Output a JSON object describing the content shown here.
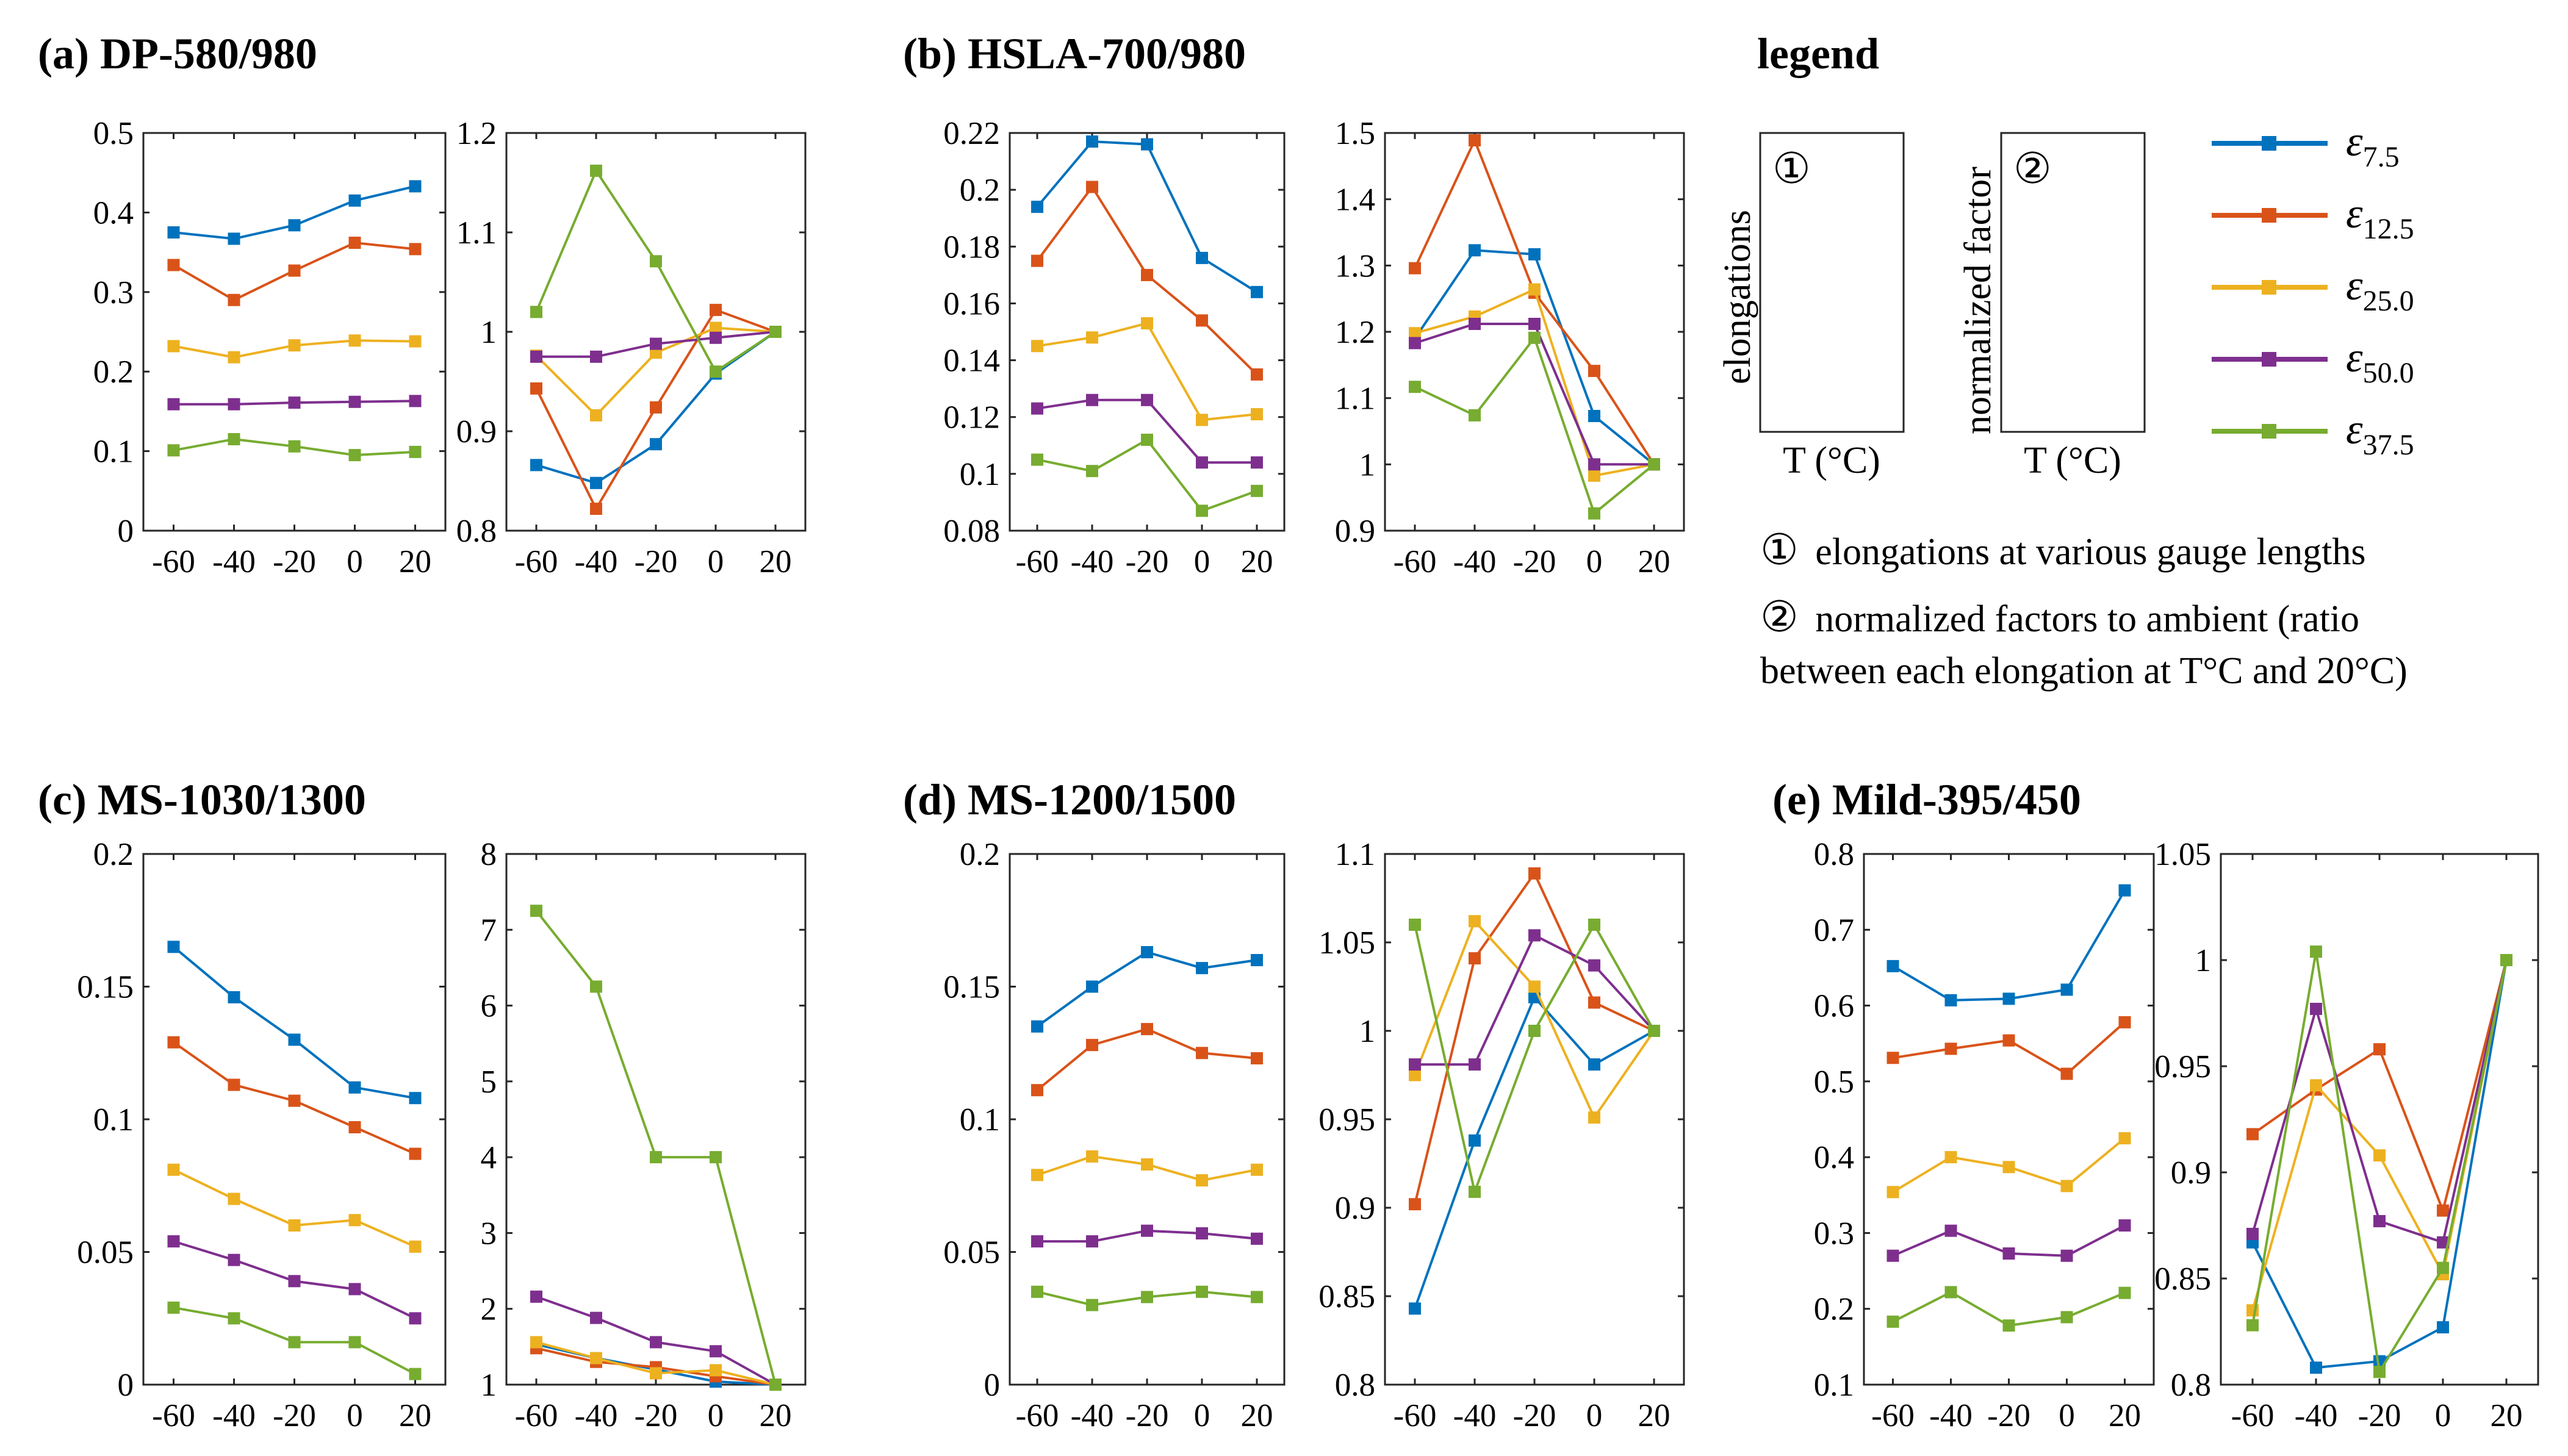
{
  "colors": {
    "blue": "#0072BD",
    "red": "#D95319",
    "yellow": "#EDB120",
    "purple": "#7E2F8E",
    "green": "#77AC30"
  },
  "chart_data": [
    {
      "id": "a",
      "title": "(a) DP-580/980",
      "subplots": [
        {
          "type": "line",
          "x": [
            -60,
            -40,
            -20,
            0,
            20
          ],
          "xticks": [
            "-60",
            "-40",
            "-20",
            "0",
            "20"
          ],
          "ylim": [
            0,
            0.5
          ],
          "yticks": [
            "0",
            "0.1",
            "0.2",
            "0.3",
            "0.4",
            "0.5"
          ],
          "series": [
            {
              "name": "ε7.5",
              "values": [
                0.375,
                0.367,
                0.384,
                0.415,
                0.433
              ]
            },
            {
              "name": "ε12.5",
              "values": [
                0.334,
                0.29,
                0.327,
                0.362,
                0.354
              ]
            },
            {
              "name": "ε25.0",
              "values": [
                0.232,
                0.218,
                0.233,
                0.239,
                0.238
              ]
            },
            {
              "name": "ε50.0",
              "values": [
                0.159,
                0.159,
                0.161,
                0.162,
                0.163
              ]
            },
            {
              "name": "ε37.5",
              "values": [
                0.101,
                0.115,
                0.106,
                0.095,
                0.099
              ]
            }
          ]
        },
        {
          "type": "line",
          "x": [
            -60,
            -40,
            -20,
            0,
            20
          ],
          "xticks": [
            "-60",
            "-40",
            "-20",
            "0",
            "20"
          ],
          "ylim": [
            0.8,
            1.2
          ],
          "yticks": [
            "0.8",
            "0.9",
            "1",
            "1.1",
            "1.2"
          ],
          "series": [
            {
              "name": "ε7.5",
              "values": [
                0.866,
                0.848,
                0.887,
                0.958,
                1.0
              ]
            },
            {
              "name": "ε12.5",
              "values": [
                0.943,
                0.822,
                0.924,
                1.022,
                1.0
              ]
            },
            {
              "name": "ε25.0",
              "values": [
                0.976,
                0.916,
                0.979,
                1.004,
                1.0
              ]
            },
            {
              "name": "ε50.0",
              "values": [
                0.975,
                0.975,
                0.988,
                0.994,
                1.0
              ]
            },
            {
              "name": "ε37.5",
              "values": [
                1.02,
                1.162,
                1.071,
                0.96,
                1.0
              ]
            }
          ]
        }
      ]
    },
    {
      "id": "b",
      "title": "(b) HSLA-700/980",
      "subplots": [
        {
          "type": "line",
          "x": [
            -60,
            -40,
            -20,
            0,
            20
          ],
          "xticks": [
            "-60",
            "-40",
            "-20",
            "0",
            "20"
          ],
          "ylim": [
            0.08,
            0.22
          ],
          "yticks": [
            "0.08",
            "0.1",
            "0.12",
            "0.14",
            "0.16",
            "0.18",
            "0.2",
            "0.22"
          ],
          "series": [
            {
              "name": "ε7.5",
              "values": [
                0.194,
                0.217,
                0.216,
                0.176,
                0.164
              ]
            },
            {
              "name": "ε12.5",
              "values": [
                0.175,
                0.201,
                0.17,
                0.154,
                0.135
              ]
            },
            {
              "name": "ε25.0",
              "values": [
                0.145,
                0.148,
                0.153,
                0.119,
                0.121
              ]
            },
            {
              "name": "ε50.0",
              "values": [
                0.123,
                0.126,
                0.126,
                0.104,
                0.104
              ]
            },
            {
              "name": "ε37.5",
              "values": [
                0.105,
                0.101,
                0.112,
                0.087,
                0.094
              ]
            }
          ]
        },
        {
          "type": "line",
          "x": [
            -60,
            -40,
            -20,
            0,
            20
          ],
          "xticks": [
            "-60",
            "-40",
            "-20",
            "0",
            "20"
          ],
          "ylim": [
            0.9,
            1.5
          ],
          "yticks": [
            "0.9",
            "1",
            "1.1",
            "1.2",
            "1.3",
            "1.4",
            "1.5"
          ],
          "series": [
            {
              "name": "ε7.5",
              "values": [
                1.19,
                1.323,
                1.317,
                1.073,
                1.0
              ]
            },
            {
              "name": "ε12.5",
              "values": [
                1.296,
                1.489,
                1.259,
                1.141,
                1.0
              ]
            },
            {
              "name": "ε25.0",
              "values": [
                1.198,
                1.223,
                1.264,
                0.983,
                1.0
              ]
            },
            {
              "name": "ε50.0",
              "values": [
                1.183,
                1.212,
                1.212,
                1.0,
                1.0
              ]
            },
            {
              "name": "ε37.5",
              "values": [
                1.117,
                1.074,
                1.191,
                0.926,
                1.0
              ]
            }
          ]
        }
      ]
    },
    {
      "id": "c",
      "title": "(c) MS-1030/1300",
      "subplots": [
        {
          "type": "line",
          "x": [
            -60,
            -40,
            -20,
            0,
            20
          ],
          "xticks": [
            "-60",
            "-40",
            "-20",
            "0",
            "20"
          ],
          "ylim": [
            0,
            0.2
          ],
          "yticks": [
            "0",
            "0.05",
            "0.1",
            "0.15",
            "0.2"
          ],
          "series": [
            {
              "name": "ε7.5",
              "values": [
                0.165,
                0.146,
                0.13,
                0.112,
                0.108
              ]
            },
            {
              "name": "ε12.5",
              "values": [
                0.129,
                0.113,
                0.107,
                0.097,
                0.087
              ]
            },
            {
              "name": "ε25.0",
              "values": [
                0.081,
                0.07,
                0.06,
                0.062,
                0.052
              ]
            },
            {
              "name": "ε50.0",
              "values": [
                0.054,
                0.047,
                0.039,
                0.036,
                0.025
              ]
            },
            {
              "name": "ε37.5",
              "values": [
                0.029,
                0.025,
                0.016,
                0.016,
                0.004
              ]
            }
          ]
        },
        {
          "type": "line",
          "x": [
            -60,
            -40,
            -20,
            0,
            20
          ],
          "xticks": [
            "-60",
            "-40",
            "-20",
            "0",
            "20"
          ],
          "ylim": [
            1,
            8
          ],
          "yticks": [
            "1",
            "2",
            "3",
            "4",
            "5",
            "6",
            "7",
            "8"
          ],
          "series": [
            {
              "name": "ε7.5",
              "values": [
                1.53,
                1.35,
                1.2,
                1.04,
                1.0
              ]
            },
            {
              "name": "ε12.5",
              "values": [
                1.48,
                1.3,
                1.23,
                1.11,
                1.0
              ]
            },
            {
              "name": "ε25.0",
              "values": [
                1.56,
                1.35,
                1.15,
                1.19,
                1.0
              ]
            },
            {
              "name": "ε50.0",
              "values": [
                2.16,
                1.88,
                1.56,
                1.44,
                1.0
              ]
            },
            {
              "name": "ε37.5",
              "values": [
                7.25,
                6.25,
                4.0,
                4.0,
                1.0
              ]
            }
          ]
        }
      ]
    },
    {
      "id": "d",
      "title": "(d) MS-1200/1500",
      "subplots": [
        {
          "type": "line",
          "x": [
            -60,
            -40,
            -20,
            0,
            20
          ],
          "xticks": [
            "-60",
            "-40",
            "-20",
            "0",
            "20"
          ],
          "ylim": [
            0,
            0.2
          ],
          "yticks": [
            "0",
            "0.05",
            "0.1",
            "0.15",
            "0.2"
          ],
          "series": [
            {
              "name": "ε7.5",
              "values": [
                0.135,
                0.15,
                0.163,
                0.157,
                0.16
              ]
            },
            {
              "name": "ε12.5",
              "values": [
                0.111,
                0.128,
                0.134,
                0.125,
                0.123
              ]
            },
            {
              "name": "ε25.0",
              "values": [
                0.079,
                0.086,
                0.083,
                0.077,
                0.081
              ]
            },
            {
              "name": "ε50.0",
              "values": [
                0.054,
                0.054,
                0.058,
                0.057,
                0.055
              ]
            },
            {
              "name": "ε37.5",
              "values": [
                0.035,
                0.03,
                0.033,
                0.035,
                0.033
              ]
            }
          ]
        },
        {
          "type": "line",
          "x": [
            -60,
            -40,
            -20,
            0,
            20
          ],
          "xticks": [
            "-60",
            "-40",
            "-20",
            "0",
            "20"
          ],
          "ylim": [
            0.8,
            1.1
          ],
          "yticks": [
            "0.8",
            "0.85",
            "0.9",
            "0.95",
            "1",
            "1.05",
            "1.1"
          ],
          "series": [
            {
              "name": "ε7.5",
              "values": [
                0.843,
                0.938,
                1.019,
                0.981,
                1.0
              ]
            },
            {
              "name": "ε12.5",
              "values": [
                0.902,
                1.041,
                1.089,
                1.016,
                1.0
              ]
            },
            {
              "name": "ε25.0",
              "values": [
                0.975,
                1.062,
                1.025,
                0.951,
                1.0
              ]
            },
            {
              "name": "ε50.0",
              "values": [
                0.981,
                0.981,
                1.054,
                1.037,
                1.0
              ]
            },
            {
              "name": "ε37.5",
              "values": [
                1.06,
                0.909,
                1.0,
                1.06,
                1.0
              ]
            }
          ]
        }
      ]
    },
    {
      "id": "e",
      "title": "(e) Mild-395/450",
      "subplots": [
        {
          "type": "line",
          "x": [
            -60,
            -40,
            -20,
            0,
            20
          ],
          "xticks": [
            "-60",
            "-40",
            "-20",
            "0",
            "20"
          ],
          "ylim": [
            0.1,
            0.8
          ],
          "yticks": [
            "0.1",
            "0.2",
            "0.3",
            "0.4",
            "0.5",
            "0.6",
            "0.7",
            "0.8"
          ],
          "series": [
            {
              "name": "ε7.5",
              "values": [
                0.652,
                0.607,
                0.609,
                0.621,
                0.752
              ]
            },
            {
              "name": "ε12.5",
              "values": [
                0.531,
                0.543,
                0.554,
                0.51,
                0.578
              ]
            },
            {
              "name": "ε25.0",
              "values": [
                0.354,
                0.4,
                0.387,
                0.362,
                0.425
              ]
            },
            {
              "name": "ε50.0",
              "values": [
                0.27,
                0.303,
                0.273,
                0.27,
                0.31
              ]
            },
            {
              "name": "ε37.5",
              "values": [
                0.183,
                0.222,
                0.178,
                0.189,
                0.221
              ]
            }
          ]
        },
        {
          "type": "line",
          "x": [
            -60,
            -40,
            -20,
            0,
            20
          ],
          "xticks": [
            "-60",
            "-40",
            "-20",
            "0",
            "20"
          ],
          "ylim": [
            0.8,
            1.05
          ],
          "yticks": [
            "0.8",
            "0.85",
            "0.9",
            "0.95",
            "1",
            "1.05"
          ],
          "series": [
            {
              "name": "ε7.5",
              "values": [
                0.867,
                0.808,
                0.811,
                0.827,
                1.0
              ]
            },
            {
              "name": "ε12.5",
              "values": [
                0.918,
                0.939,
                0.958,
                0.882,
                1.0
              ]
            },
            {
              "name": "ε25.0",
              "values": [
                0.835,
                0.941,
                0.908,
                0.852,
                1.0
              ]
            },
            {
              "name": "ε50.0",
              "values": [
                0.871,
                0.977,
                0.877,
                0.867,
                1.0
              ]
            },
            {
              "name": "ε37.5",
              "values": [
                0.828,
                1.004,
                0.806,
                0.855,
                1.0
              ]
            }
          ]
        }
      ]
    }
  ],
  "legend": {
    "title": "legend",
    "box1": {
      "circled_number": "①",
      "ylabel": "elongations",
      "xlabel": "T (°C)"
    },
    "box2": {
      "circled_number": "②",
      "ylabel": "normalized factor",
      "xlabel": "T (°C)"
    },
    "entries": [
      {
        "symbol": "ε",
        "sub": "7.5"
      },
      {
        "symbol": "ε",
        "sub": "12.5"
      },
      {
        "symbol": "ε",
        "sub": "25.0"
      },
      {
        "symbol": "ε",
        "sub": "50.0"
      },
      {
        "symbol": "ε",
        "sub": "37.5"
      }
    ],
    "note1_number": "①",
    "note1": "elongations at various gauge lengths",
    "note2_number": "②",
    "note2_line1": "normalized factors to ambient (ratio",
    "note2_line2": "between each elongation at T°C and 20°C)"
  }
}
